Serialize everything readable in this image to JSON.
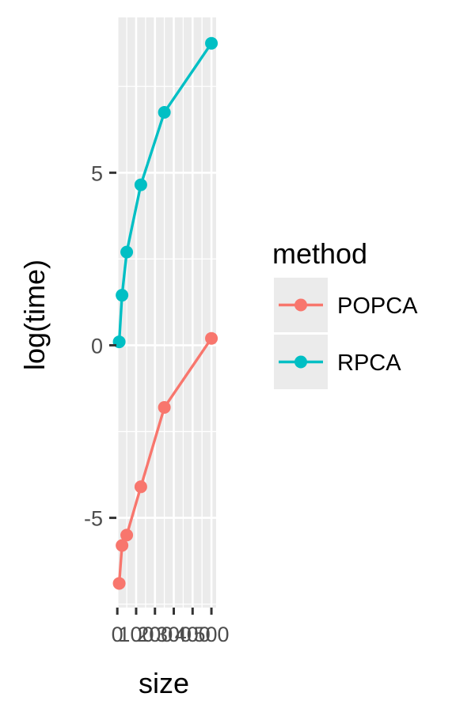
{
  "chart_data": {
    "type": "line",
    "xlabel": "size",
    "ylabel": "log(time)",
    "x_ticks": [
      0,
      100,
      200,
      300,
      400,
      500
    ],
    "x_tick_labels": [
      "0",
      "100",
      "200",
      "300",
      "400",
      "500"
    ],
    "y_ticks": [
      -5,
      0,
      5
    ],
    "y_tick_labels": [
      "-5",
      "0",
      "5"
    ],
    "xlim": [
      -5,
      525
    ],
    "ylim": [
      -7.6,
      9.5
    ],
    "grid": true,
    "legend_title": "method",
    "legend_position": "right",
    "series": [
      {
        "name": "POPCA",
        "color": "#F8766D",
        "points": [
          {
            "x": 10,
            "y": -6.9
          },
          {
            "x": 25,
            "y": -5.8
          },
          {
            "x": 50,
            "y": -5.5
          },
          {
            "x": 125,
            "y": -4.1
          },
          {
            "x": 250,
            "y": -1.8
          },
          {
            "x": 500,
            "y": 0.2
          }
        ]
      },
      {
        "name": "RPCA",
        "color": "#00BFC4",
        "points": [
          {
            "x": 10,
            "y": 0.1
          },
          {
            "x": 25,
            "y": 1.45
          },
          {
            "x": 50,
            "y": 2.7
          },
          {
            "x": 125,
            "y": 4.65
          },
          {
            "x": 250,
            "y": 6.75
          },
          {
            "x": 500,
            "y": 8.75
          }
        ]
      }
    ]
  }
}
